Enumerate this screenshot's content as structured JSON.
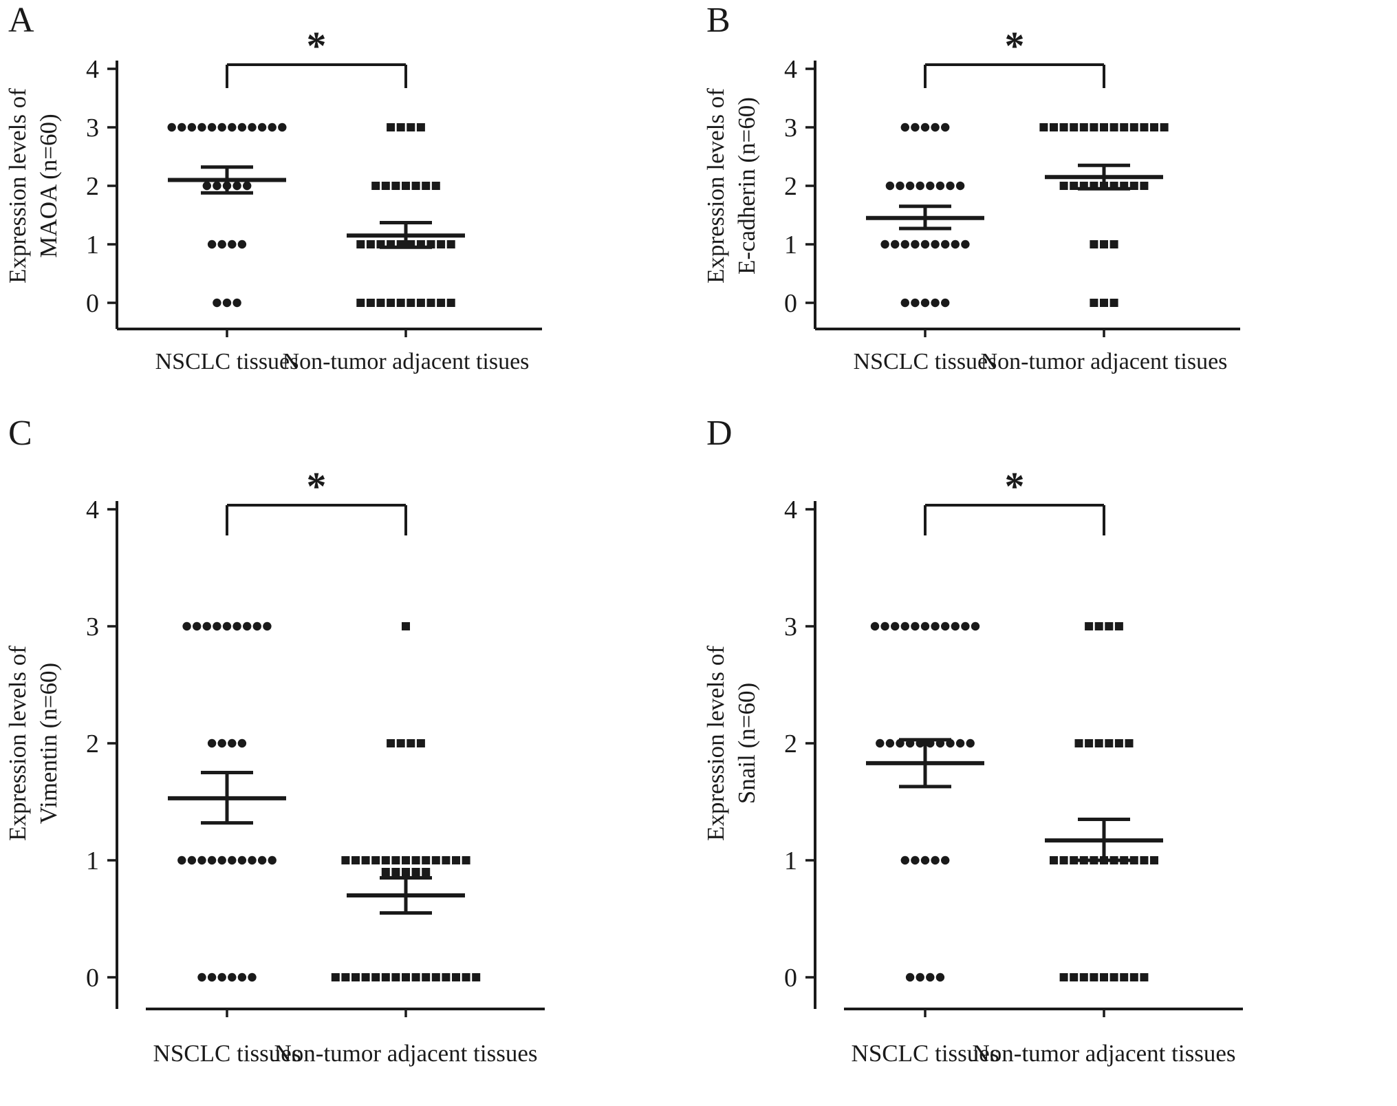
{
  "figure": {
    "background": "#ffffff",
    "ink_color": "#1a1a1a",
    "description": "Four-panel dot plot figure comparing expression levels in NSCLC tissues vs non-tumor adjacent tissues"
  },
  "chart_data": [
    {
      "type": "scatter",
      "panel_label": "A",
      "ylabel_lines": [
        "Expression levels of",
        "MAOA (n=60)"
      ],
      "ylim": [
        0,
        4
      ],
      "yticks": [
        0,
        1,
        2,
        3,
        4
      ],
      "grid": "off",
      "legend": "none",
      "significance": "*",
      "categories": [
        "NSCLC tissues",
        "Non-tumor adjacent tisues"
      ],
      "series": [
        {
          "name": "NSCLC tissues",
          "marker": "circle",
          "rows": [
            {
              "value": 3,
              "count": 12
            },
            {
              "value": 2,
              "count": 5
            },
            {
              "value": 1,
              "count": 4
            },
            {
              "value": 0,
              "count": 3
            }
          ],
          "mean": 2.1,
          "sem_low": 1.88,
          "sem_high": 2.32
        },
        {
          "name": "Non-tumor adjacent tisues",
          "marker": "square",
          "rows": [
            {
              "value": 3,
              "count": 4
            },
            {
              "value": 2,
              "count": 7
            },
            {
              "value": 1,
              "count": 10
            },
            {
              "value": 0,
              "count": 10
            }
          ],
          "mean": 1.15,
          "sem_low": 0.95,
          "sem_high": 1.37
        }
      ]
    },
    {
      "type": "scatter",
      "panel_label": "B",
      "ylabel_lines": [
        "Expression levels of",
        "E-cadherin (n=60)"
      ],
      "ylim": [
        0,
        4
      ],
      "yticks": [
        0,
        1,
        2,
        3,
        4
      ],
      "grid": "off",
      "legend": "none",
      "significance": "*",
      "categories": [
        "NSCLC tissues",
        "Non-tumor adjacent tisues"
      ],
      "series": [
        {
          "name": "NSCLC tissues",
          "marker": "circle",
          "rows": [
            {
              "value": 3,
              "count": 5
            },
            {
              "value": 2,
              "count": 8
            },
            {
              "value": 1,
              "count": 9
            },
            {
              "value": 0,
              "count": 5
            }
          ],
          "mean": 1.45,
          "sem_low": 1.27,
          "sem_high": 1.65
        },
        {
          "name": "Non-tumor adjacent tisues",
          "marker": "square",
          "rows": [
            {
              "value": 3,
              "count": 13
            },
            {
              "value": 2,
              "count": 9
            },
            {
              "value": 1,
              "count": 3
            },
            {
              "value": 0,
              "count": 3
            }
          ],
          "mean": 2.15,
          "sem_low": 1.95,
          "sem_high": 2.35
        }
      ]
    },
    {
      "type": "scatter",
      "panel_label": "C",
      "ylabel_lines": [
        "Expression levels of",
        "Vimentin  (n=60)"
      ],
      "ylim": [
        0,
        4
      ],
      "yticks": [
        0,
        1,
        2,
        3,
        4
      ],
      "grid": "off",
      "legend": "none",
      "significance": "*",
      "categories": [
        "NSCLC tissues",
        "Non-tumor adjacent tissues"
      ],
      "series": [
        {
          "name": "NSCLC tissues",
          "marker": "circle",
          "rows": [
            {
              "value": 3,
              "count": 9
            },
            {
              "value": 2,
              "count": 4
            },
            {
              "value": 1,
              "count": 10
            },
            {
              "value": 0,
              "count": 6
            }
          ],
          "mean": 1.53,
          "sem_low": 1.32,
          "sem_high": 1.75
        },
        {
          "name": "Non-tumor adjacent tissues",
          "marker": "square",
          "rows": [
            {
              "value": 3,
              "count": 1
            },
            {
              "value": 2,
              "count": 4
            },
            {
              "value": 1,
              "count": 13
            },
            {
              "value": 0.9,
              "count": 5
            },
            {
              "value": 0,
              "count": 15
            }
          ],
          "mean": 0.7,
          "sem_low": 0.55,
          "sem_high": 0.85
        }
      ]
    },
    {
      "type": "scatter",
      "panel_label": "D",
      "ylabel_lines": [
        "Expression levels of",
        "Snail (n=60)"
      ],
      "ylim": [
        0,
        4
      ],
      "yticks": [
        0,
        1,
        2,
        3,
        4
      ],
      "grid": "off",
      "legend": "none",
      "significance": "*",
      "categories": [
        "NSCLC tissues",
        "Non-tumor adjacent tissues"
      ],
      "series": [
        {
          "name": "NSCLC tissues",
          "marker": "circle",
          "rows": [
            {
              "value": 3,
              "count": 11
            },
            {
              "value": 2,
              "count": 10
            },
            {
              "value": 1,
              "count": 5
            },
            {
              "value": 0,
              "count": 4
            }
          ],
          "mean": 1.83,
          "sem_low": 1.63,
          "sem_high": 2.03
        },
        {
          "name": "Non-tumor adjacent tissues",
          "marker": "square",
          "rows": [
            {
              "value": 3,
              "count": 4
            },
            {
              "value": 2,
              "count": 6
            },
            {
              "value": 1,
              "count": 11
            },
            {
              "value": 0,
              "count": 9
            }
          ],
          "mean": 1.17,
          "sem_low": 1.0,
          "sem_high": 1.35
        }
      ]
    }
  ]
}
